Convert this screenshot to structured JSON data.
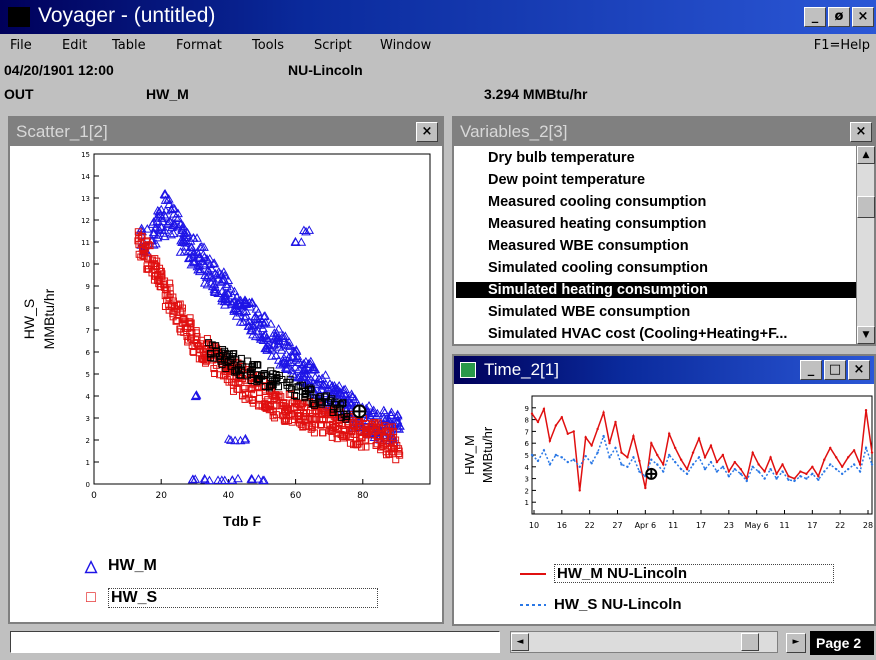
{
  "app": {
    "title": "Voyager - (untitled)",
    "window_buttons": [
      "_",
      "ø",
      "×"
    ]
  },
  "menu": {
    "items": [
      "File",
      "Edit",
      "Table",
      "Format",
      "Tools",
      "Script",
      "Window"
    ],
    "help": "F1=Help"
  },
  "status": {
    "datetime": "04/20/1901 12:00",
    "site": "NU-Lincoln",
    "mode": "OUT",
    "variable": "HW_M",
    "value": "3.294 MMBtu/hr"
  },
  "scatter": {
    "title": "Scatter_1[2]",
    "close": "×",
    "chart_data": {
      "type": "scatter",
      "xlabel": "Tdb F",
      "ylabel": "HW_S\nMMBtu/hr",
      "xlim": [
        0,
        100
      ],
      "ylim": [
        0,
        15
      ],
      "x_ticks": [
        "0",
        "20",
        "40",
        "60",
        "80"
      ],
      "y_ticks": [
        "0",
        "1",
        "2",
        "3",
        "4",
        "5",
        "6",
        "7",
        "8",
        "9",
        "10",
        "11",
        "12",
        "13",
        "14",
        "15"
      ],
      "series": [
        {
          "name": "HW_M",
          "color": "#1e14e6",
          "marker": "triangle",
          "x": [
            15,
            18,
            20,
            22,
            24,
            26,
            28,
            30,
            32,
            34,
            36,
            38,
            40,
            42,
            44,
            46,
            48,
            50,
            52,
            54,
            56,
            58,
            60,
            62,
            64,
            66,
            68,
            70,
            72,
            74,
            76,
            78,
            80,
            82,
            84,
            86,
            88,
            90,
            61,
            63,
            31,
            41,
            44,
            30,
            34,
            38,
            42,
            46,
            50
          ],
          "y": [
            11.0,
            11.5,
            11.8,
            12.5,
            12.0,
            11.2,
            10.8,
            10.5,
            10.2,
            9.7,
            9.4,
            9.0,
            8.7,
            8.3,
            8.0,
            7.6,
            7.3,
            7.0,
            6.7,
            6.4,
            6.1,
            5.8,
            5.5,
            5.2,
            4.9,
            4.6,
            4.3,
            4.0,
            3.8,
            3.6,
            3.4,
            3.2,
            3.0,
            2.9,
            2.8,
            2.7,
            2.6,
            2.5,
            11.0,
            11.5,
            4.0,
            2.0,
            2.0,
            0.2,
            0.2,
            0.2,
            0.2,
            0.2,
            0.2
          ]
        },
        {
          "name": "HW_S",
          "color": "#e01010",
          "marker": "square",
          "x": [
            14,
            16,
            18,
            20,
            22,
            24,
            26,
            28,
            30,
            32,
            34,
            36,
            38,
            40,
            42,
            44,
            46,
            48,
            50,
            52,
            54,
            56,
            58,
            60,
            62,
            64,
            66,
            68,
            70,
            72,
            74,
            76,
            78,
            80,
            82,
            84,
            86,
            88,
            90
          ],
          "y": [
            11.0,
            10.4,
            9.8,
            9.2,
            8.6,
            8.0,
            7.5,
            7.0,
            6.6,
            6.3,
            6.0,
            5.7,
            5.4,
            5.1,
            4.9,
            4.7,
            4.5,
            4.3,
            4.1,
            3.9,
            3.7,
            3.5,
            3.4,
            3.3,
            3.2,
            3.1,
            3.0,
            2.9,
            2.8,
            2.7,
            2.6,
            2.5,
            2.4,
            2.3,
            2.2,
            2.1,
            2.0,
            1.9,
            1.8
          ]
        }
      ],
      "cursor": {
        "x": 79,
        "y": 3.3
      }
    },
    "legend": [
      {
        "marker": "△",
        "label": "HW_M",
        "color": "#1e14e6"
      },
      {
        "marker": "□",
        "label": "HW_S",
        "color": "#e01010"
      }
    ]
  },
  "variables": {
    "title": "Variables_2[3]",
    "close": "×",
    "items": [
      "Dry bulb temperature",
      "Dew point temperature",
      "Measured cooling consumption",
      "Measured heating consumption",
      "Measured WBE consumption",
      "Simulated cooling consumption",
      "Simulated heating consumption",
      "Simulated WBE consumption",
      "Simulated HVAC cost (Cooling+Heating+F..."
    ],
    "selected_index": 6
  },
  "timeplot": {
    "title": "Time_2[1]",
    "buttons": [
      "_",
      "□",
      "×"
    ],
    "chart_data": {
      "type": "line",
      "ylabel": "HW_M\nMMBtu/hr",
      "ylim": [
        0,
        10
      ],
      "y_ticks": [
        "1",
        "2",
        "3",
        "4",
        "5",
        "6",
        "7",
        "8",
        "9"
      ],
      "x_ticks": [
        "10",
        "16",
        "22",
        "27",
        "Apr 6",
        "11",
        "17",
        "23",
        "May 6",
        "11",
        "17",
        "22",
        "28"
      ],
      "series": [
        {
          "name": "HW_M NU-Lincoln",
          "color": "#e01010",
          "style": "solid",
          "values": [
            8.5,
            7.8,
            8.9,
            6.2,
            7.5,
            8.2,
            6.8,
            7.0,
            2.0,
            6.5,
            5.8,
            7.2,
            8.6,
            6.0,
            7.8,
            5.2,
            4.8,
            6.6,
            4.5,
            2.2,
            6.0,
            5.0,
            4.2,
            6.8,
            5.6,
            4.6,
            3.8,
            5.2,
            6.4,
            4.8,
            5.8,
            4.4,
            5.0,
            3.6,
            4.4,
            3.8,
            3.0,
            5.2,
            4.2,
            3.6,
            4.8,
            3.4,
            4.2,
            3.2,
            3.0,
            3.6,
            3.4,
            4.0,
            3.2,
            4.6,
            5.6,
            4.8,
            4.0,
            4.8,
            5.4,
            4.2,
            8.8,
            5.2
          ]
        },
        {
          "name": "HW_S NU-Lincoln",
          "color": "#2a78e6",
          "style": "dotted",
          "values": [
            5.0,
            4.5,
            5.4,
            4.2,
            5.0,
            4.8,
            4.4,
            4.6,
            4.0,
            4.9,
            4.3,
            5.2,
            6.6,
            4.8,
            5.6,
            4.2,
            4.0,
            4.8,
            3.6,
            3.2,
            4.6,
            4.2,
            3.6,
            5.0,
            4.4,
            3.8,
            3.4,
            4.2,
            4.8,
            3.8,
            4.4,
            3.6,
            4.0,
            3.2,
            3.8,
            3.4,
            2.8,
            4.0,
            3.6,
            3.0,
            3.8,
            3.0,
            3.6,
            2.9,
            2.8,
            3.2,
            3.0,
            3.4,
            2.9,
            3.6,
            4.2,
            3.8,
            3.4,
            3.8,
            4.2,
            3.6,
            5.6,
            4.2
          ]
        }
      ],
      "cursor": {
        "index": 20,
        "y": 3.4
      }
    },
    "legend": [
      {
        "line": "solid",
        "label": "HW_M NU-Lincoln",
        "color": "#e01010"
      },
      {
        "line": "dotted",
        "label": "HW_S NU-Lincoln",
        "color": "#2a78e6"
      }
    ]
  },
  "bottom": {
    "scroll_left": "◄",
    "scroll_right": "►",
    "page": "Page 2"
  }
}
